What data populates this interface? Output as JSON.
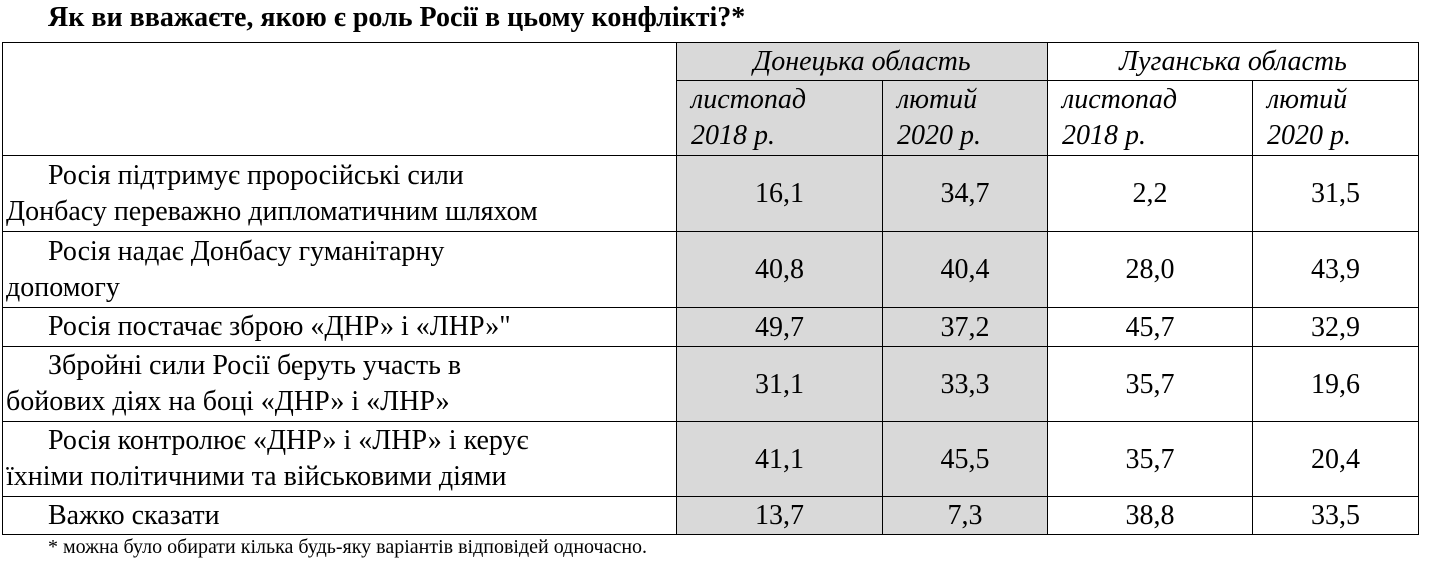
{
  "header": {
    "title": "Як ви вважаєте, якою є роль Росії в цьому конфлікті?*"
  },
  "table": {
    "groups": [
      "Донецька область",
      "Луганська область"
    ],
    "columns": [
      [
        "листопад",
        "2018 р."
      ],
      [
        "лютий",
        "2020 р."
      ],
      [
        "листопад",
        "2018 р."
      ],
      [
        "лютий",
        "2020 р."
      ]
    ],
    "rows": [
      {
        "label": [
          "Росія підтримує проросійські сили",
          "Донбасу переважно дипломатичним шляхом"
        ],
        "values": [
          "16,1",
          "34,7",
          "2,2",
          "31,5"
        ]
      },
      {
        "label": [
          "Росія надає Донбасу гуманітарну",
          "допомогу"
        ],
        "values": [
          "40,8",
          "40,4",
          "28,0",
          "43,9"
        ]
      },
      {
        "label": [
          "Росія постачає зброю «ДНР» і «ЛНР»\""
        ],
        "values": [
          "49,7",
          "37,2",
          "45,7",
          "32,9"
        ]
      },
      {
        "label": [
          "Збройні сили Росії беруть участь в",
          "бойових діях на боці «ДНР» і «ЛНР»"
        ],
        "values": [
          "31,1",
          "33,3",
          "35,7",
          "19,6"
        ]
      },
      {
        "label": [
          "Росія контролює «ДНР» і «ЛНР» і керує",
          "їхніми політичними та військовими діями"
        ],
        "values": [
          "41,1",
          "45,5",
          "35,7",
          "20,4"
        ]
      },
      {
        "label": [
          "Важко сказати"
        ],
        "values": [
          "13,7",
          "7,3",
          "38,8",
          "33,5"
        ]
      }
    ]
  },
  "footnote": "* можна було обирати кілька будь-яку варіантів відповідей одночасно."
}
